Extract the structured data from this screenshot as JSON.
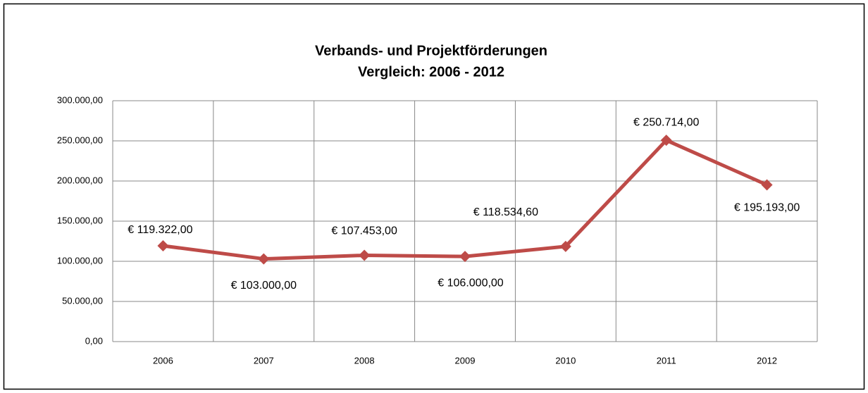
{
  "chart_data": {
    "type": "line",
    "title": "Verbands- und Projektförderungen",
    "subtitle": "Vergleich: 2006 - 2012",
    "categories": [
      "2006",
      "2007",
      "2008",
      "2009",
      "2010",
      "2011",
      "2012"
    ],
    "series": [
      {
        "name": null,
        "color": "#be4b48",
        "values": [
          119322,
          103000,
          107453,
          106000,
          118534.6,
          250714,
          195193
        ],
        "value_labels": [
          "€ 119.322,00",
          "€ 103.000,00",
          "€ 107.453,00",
          "€ 106.000,00",
          "€ 118.534,60",
          "€ 250.714,00",
          "€ 195.193,00"
        ]
      }
    ],
    "ylim": [
      0,
      300000
    ],
    "yticks": [
      {
        "value": 0,
        "label": "0,00"
      },
      {
        "value": 50000,
        "label": "50.000,00"
      },
      {
        "value": 100000,
        "label": "100.000,00"
      },
      {
        "value": 150000,
        "label": "150.000,00"
      },
      {
        "value": 200000,
        "label": "200.000,00"
      },
      {
        "value": 250000,
        "label": "250.000,00"
      },
      {
        "value": 300000,
        "label": "300.000,00"
      }
    ],
    "grid": true
  }
}
